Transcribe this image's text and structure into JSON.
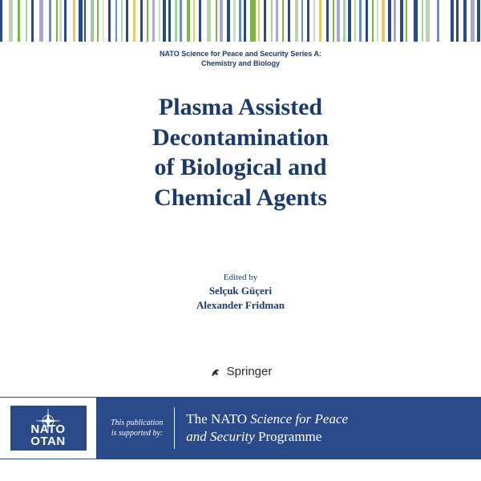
{
  "series": {
    "line1": "NATO Science for Peace and Security Series A:",
    "line2": "Chemistry and Biology"
  },
  "title": {
    "l1": "Plasma Assisted",
    "l2": "Decontamination",
    "l3": "of Biological and",
    "l4": "Chemical Agents"
  },
  "editors": {
    "label": "Edited by",
    "e1": "Selçuk Güçeri",
    "e2": "Alexander Fridman"
  },
  "publisher": "Springer",
  "nato": {
    "acronym1": "NATO",
    "acronym2": "OTAN",
    "support_l1": "This publication",
    "support_l2": "is supported by:",
    "prog_the": "The ",
    "prog_nato": "NATO ",
    "prog_sci": "Science for Peace",
    "prog_and": "and ",
    "prog_sec": "Security ",
    "prog_prog": "Programme"
  },
  "colors": {
    "brand_blue": "#2a4a8a",
    "title_blue": "#1a3a6e"
  },
  "top_bars": [
    {
      "w": 3,
      "c": "#2a4a8a"
    },
    {
      "w": 7,
      "c": "#ffffff"
    },
    {
      "w": 4,
      "c": "#b8d4a8"
    },
    {
      "w": 5,
      "c": "#ffffff"
    },
    {
      "w": 3,
      "c": "#7ab648"
    },
    {
      "w": 6,
      "c": "#ffffff"
    },
    {
      "w": 2,
      "c": "#9fd89f"
    },
    {
      "w": 4,
      "c": "#ffffff"
    },
    {
      "w": 3,
      "c": "#2a4a8a"
    },
    {
      "w": 6,
      "c": "#ffffff"
    },
    {
      "w": 4,
      "c": "#a8a8d8"
    },
    {
      "w": 6,
      "c": "#ffffff"
    },
    {
      "w": 3,
      "c": "#6a8fc8"
    },
    {
      "w": 5,
      "c": "#ffffff"
    },
    {
      "w": 2,
      "c": "#7ab648"
    },
    {
      "w": 2,
      "c": "#ffffff"
    },
    {
      "w": 2,
      "c": "#c8e0c8"
    },
    {
      "w": 3,
      "c": "#ffffff"
    },
    {
      "w": 3,
      "c": "#2a4a8a"
    },
    {
      "w": 7,
      "c": "#ffffff"
    },
    {
      "w": 2,
      "c": "#e8c860"
    },
    {
      "w": 4,
      "c": "#ffffff"
    },
    {
      "w": 4,
      "c": "#2a4a8a"
    },
    {
      "w": 2,
      "c": "#ffffff"
    },
    {
      "w": 2,
      "c": "#2a4a8a"
    },
    {
      "w": 5,
      "c": "#ffffff"
    },
    {
      "w": 3,
      "c": "#a8c4a0"
    },
    {
      "w": 4,
      "c": "#ffffff"
    },
    {
      "w": 2,
      "c": "#7ab648"
    },
    {
      "w": 4,
      "c": "#ffffff"
    },
    {
      "w": 2,
      "c": "#d8e8d0"
    },
    {
      "w": 4,
      "c": "#ffffff"
    },
    {
      "w": 3,
      "c": "#2a4a8a"
    },
    {
      "w": 5,
      "c": "#ffffff"
    },
    {
      "w": 2,
      "c": "#6a8fc8"
    },
    {
      "w": 4,
      "c": "#ffffff"
    },
    {
      "w": 2,
      "c": "#b8d4a8"
    },
    {
      "w": 3,
      "c": "#ffffff"
    },
    {
      "w": 3,
      "c": "#2a4a8a"
    },
    {
      "w": 5,
      "c": "#ffffff"
    },
    {
      "w": 3,
      "c": "#e8c860"
    },
    {
      "w": 5,
      "c": "#ffffff"
    },
    {
      "w": 3,
      "c": "#2a4a8a"
    },
    {
      "w": 4,
      "c": "#ffffff"
    },
    {
      "w": 2,
      "c": "#7ab648"
    },
    {
      "w": 4,
      "c": "#ffffff"
    },
    {
      "w": 3,
      "c": "#a8a8d8"
    },
    {
      "w": 4,
      "c": "#ffffff"
    },
    {
      "w": 2,
      "c": "#c8e0c8"
    },
    {
      "w": 3,
      "c": "#ffffff"
    },
    {
      "w": 3,
      "c": "#2a4a8a"
    },
    {
      "w": 3,
      "c": "#ffffff"
    },
    {
      "w": 2,
      "c": "#2a4a8a"
    },
    {
      "w": 5,
      "c": "#ffffff"
    },
    {
      "w": 2,
      "c": "#9fd89f"
    },
    {
      "w": 3,
      "c": "#ffffff"
    },
    {
      "w": 3,
      "c": "#6a8fc8"
    },
    {
      "w": 5,
      "c": "#ffffff"
    },
    {
      "w": 3,
      "c": "#7ab648"
    },
    {
      "w": 4,
      "c": "#ffffff"
    },
    {
      "w": 2,
      "c": "#e8c860"
    },
    {
      "w": 4,
      "c": "#ffffff"
    },
    {
      "w": 3,
      "c": "#2a4a8a"
    },
    {
      "w": 6,
      "c": "#ffffff"
    },
    {
      "w": 4,
      "c": "#b8d4a8"
    },
    {
      "w": 5,
      "c": "#ffffff"
    },
    {
      "w": 2,
      "c": "#7ab648"
    },
    {
      "w": 3,
      "c": "#ffffff"
    },
    {
      "w": 3,
      "c": "#a8a8d8"
    },
    {
      "w": 5,
      "c": "#ffffff"
    },
    {
      "w": 3,
      "c": "#2a4a8a"
    },
    {
      "w": 4,
      "c": "#ffffff"
    },
    {
      "w": 2,
      "c": "#c8e0c8"
    },
    {
      "w": 4,
      "c": "#ffffff"
    },
    {
      "w": 2,
      "c": "#6a8fc8"
    },
    {
      "w": 3,
      "c": "#ffffff"
    },
    {
      "w": 3,
      "c": "#2a4a8a"
    },
    {
      "w": 4,
      "c": "#ffffff"
    },
    {
      "w": 6,
      "c": "#7ab648"
    },
    {
      "w": 3,
      "c": "#ffffff"
    },
    {
      "w": 2,
      "c": "#e8c860"
    },
    {
      "w": 4,
      "c": "#ffffff"
    },
    {
      "w": 3,
      "c": "#2a4a8a"
    },
    {
      "w": 5,
      "c": "#ffffff"
    },
    {
      "w": 2,
      "c": "#9fd89f"
    },
    {
      "w": 3,
      "c": "#ffffff"
    },
    {
      "w": 3,
      "c": "#a8a8d8"
    },
    {
      "w": 4,
      "c": "#ffffff"
    },
    {
      "w": 2,
      "c": "#7ab648"
    },
    {
      "w": 4,
      "c": "#ffffff"
    },
    {
      "w": 3,
      "c": "#2a4a8a"
    },
    {
      "w": 5,
      "c": "#ffffff"
    },
    {
      "w": 4,
      "c": "#b8d4a8"
    },
    {
      "w": 3,
      "c": "#ffffff"
    },
    {
      "w": 2,
      "c": "#6a8fc8"
    },
    {
      "w": 4,
      "c": "#ffffff"
    },
    {
      "w": 3,
      "c": "#2a4a8a"
    },
    {
      "w": 4,
      "c": "#ffffff"
    },
    {
      "w": 2,
      "c": "#c8e0c8"
    },
    {
      "w": 4,
      "c": "#ffffff"
    },
    {
      "w": 3,
      "c": "#e8c860"
    },
    {
      "w": 5,
      "c": "#ffffff"
    },
    {
      "w": 3,
      "c": "#2a4a8a"
    },
    {
      "w": 4,
      "c": "#ffffff"
    },
    {
      "w": 2,
      "c": "#7ab648"
    },
    {
      "w": 3,
      "c": "#ffffff"
    },
    {
      "w": 3,
      "c": "#a8a8d8"
    },
    {
      "w": 4,
      "c": "#ffffff"
    },
    {
      "w": 2,
      "c": "#9fd89f"
    },
    {
      "w": 3,
      "c": "#ffffff"
    },
    {
      "w": 3,
      "c": "#2a4a8a"
    },
    {
      "w": 4,
      "c": "#ffffff"
    },
    {
      "w": 2,
      "c": "#b8d4a8"
    },
    {
      "w": 3,
      "c": "#ffffff"
    },
    {
      "w": 3,
      "c": "#6a8fc8"
    },
    {
      "w": 4,
      "c": "#ffffff"
    },
    {
      "w": 3,
      "c": "#2a4a8a"
    },
    {
      "w": 4,
      "c": "#ffffff"
    },
    {
      "w": 2,
      "c": "#7ab648"
    },
    {
      "w": 3,
      "c": "#ffffff"
    },
    {
      "w": 2,
      "c": "#c8e0c8"
    },
    {
      "w": 4,
      "c": "#ffffff"
    },
    {
      "w": 3,
      "c": "#e8c860"
    },
    {
      "w": 4,
      "c": "#ffffff"
    },
    {
      "w": 3,
      "c": "#2a4a8a"
    },
    {
      "w": 3,
      "c": "#ffffff"
    },
    {
      "w": 2,
      "c": "#a8a8d8"
    },
    {
      "w": 5,
      "c": "#ffffff"
    },
    {
      "w": 3,
      "c": "#2a4a8a"
    },
    {
      "w": 3,
      "c": "#ffffff"
    },
    {
      "w": 2,
      "c": "#7ab648"
    },
    {
      "w": 7,
      "c": "#ffffff"
    },
    {
      "w": 4,
      "c": "#2a4a8a"
    },
    {
      "w": 4,
      "c": "#ffffff"
    },
    {
      "w": 2,
      "c": "#9fd89f"
    },
    {
      "w": 3,
      "c": "#ffffff"
    },
    {
      "w": 4,
      "c": "#b8d4a8"
    },
    {
      "w": 8,
      "c": "#ffffff"
    },
    {
      "w": 3,
      "c": "#6a8fc8"
    },
    {
      "w": 12,
      "c": "#ffffff"
    },
    {
      "w": 3,
      "c": "#2a4a8a"
    },
    {
      "w": 3,
      "c": "#ffffff"
    },
    {
      "w": 3,
      "c": "#2a4a8a"
    },
    {
      "w": 5,
      "c": "#ffffff"
    },
    {
      "w": 3,
      "c": "#2a4a8a"
    },
    {
      "w": 5,
      "c": "#ffffff"
    },
    {
      "w": 4,
      "c": "#a8a8d8"
    },
    {
      "w": 3,
      "c": "#ffffff"
    },
    {
      "w": 3,
      "c": "#2a4a8a"
    }
  ]
}
